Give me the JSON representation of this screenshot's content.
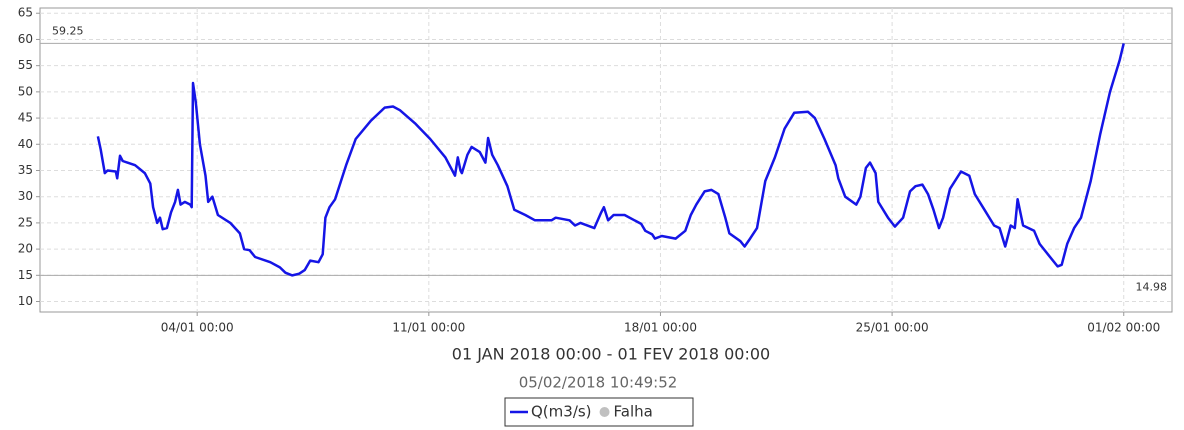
{
  "chart_data": {
    "type": "line",
    "title": "01 JAN 2018 00:00 - 01 FEV 2018 00:00",
    "subtitle": "05/02/2018 10:49:52",
    "x": [
      "01/01 00:00",
      "01/01 02:00",
      "01/01 05:00",
      "01/01 07:00",
      "01/01 13:00",
      "01/01 14:00",
      "01/01 16:00",
      "01/01 18:00",
      "02/01 03:00",
      "02/01 10:00",
      "02/01 14:00",
      "02/01 16:00",
      "02/01 19:00",
      "02/01 21:00",
      "02/01 23:00",
      "03/01 02:00",
      "03/01 05:00",
      "03/01 08:00",
      "03/01 10:00",
      "03/01 12:00",
      "03/01 15:00",
      "03/01 19:00",
      "03/01 20:00",
      "03/01 21:00",
      "03/01 23:00",
      "04/01 02:00",
      "04/01 06:00",
      "04/01 08:00",
      "04/01 11:00",
      "04/01 15:00",
      "05/01 00:00",
      "05/01 07:00",
      "05/01 10:00",
      "05/01 14:00",
      "05/01 18:00",
      "06/01 05:00",
      "06/01 12:00",
      "06/01 16:00",
      "06/01 21:00",
      "07/01 02:00",
      "07/01 06:00",
      "07/01 10:00",
      "07/01 16:00",
      "07/01 19:00",
      "07/01 21:00",
      "08/01 00:00",
      "08/01 04:00",
      "08/01 12:00",
      "08/01 19:00",
      "09/01 06:00",
      "09/01 16:00",
      "09/01 22:00",
      "10/01 03:00",
      "10/01 14:00",
      "11/01 01:00",
      "11/01 12:00",
      "11/01 17:00",
      "11/01 19:00",
      "11/01 21:00",
      "11/01 23:00",
      "12/01 00:00",
      "12/01 04:00",
      "12/01 07:00",
      "12/01 13:00",
      "12/01 17:00",
      "12/01 19:00",
      "12/01 22:00",
      "13/01 02:00",
      "13/01 09:00",
      "13/01 14:00",
      "13/01 22:00",
      "14/01 05:00",
      "14/01 17:00",
      "14/01 20:00",
      "15/01 06:00",
      "15/01 10:00",
      "15/01 14:00",
      "16/01 00:00",
      "16/01 05:00",
      "16/01 07:00",
      "16/01 10:00",
      "16/01 14:00",
      "16/01 22:00",
      "17/01 10:00",
      "17/01 13:00",
      "17/01 18:00",
      "17/01 20:00",
      "18/01 01:00",
      "18/01 11:00",
      "18/01 18:00",
      "18/01 22:00",
      "19/01 02:00",
      "19/01 08:00",
      "19/01 13:00",
      "19/01 18:00",
      "19/01 23:00",
      "20/01 02:00",
      "20/01 10:00",
      "20/01 13:00",
      "20/01 17:00",
      "20/01 22:00",
      "21/01 04:00",
      "21/01 11:00",
      "21/01 18:00",
      "22/01 01:00",
      "22/01 11:00",
      "22/01 16:00",
      "22/01 23:00",
      "23/01 07:00",
      "23/01 09:00",
      "23/01 14:00",
      "23/01 22:00",
      "24/01 01:00",
      "24/01 05:00",
      "24/01 08:00",
      "24/01 12:00",
      "24/01 14:00",
      "24/01 21:00",
      "25/01 02:00",
      "25/01 08:00",
      "25/01 13:00",
      "25/01 17:00",
      "25/01 22:00",
      "26/01 02:00",
      "26/01 06:00",
      "26/01 10:00",
      "26/01 13:00",
      "26/01 18:00",
      "27/01 02:00",
      "27/01 08:00",
      "27/01 12:00",
      "27/01 19:00",
      "28/01 02:00",
      "28/01 06:00",
      "28/01 10:00",
      "28/01 14:00",
      "28/01 17:00",
      "28/01 19:00",
      "28/01 23:00",
      "29/01 07:00",
      "29/01 11:00",
      "29/01 17:00",
      "30/01 00:00",
      "30/01 03:00",
      "30/01 07:00",
      "30/01 12:00",
      "30/01 17:00",
      "31/01 00:00",
      "31/01 07:00",
      "31/01 14:00",
      "31/01 21:00",
      "01/02 00:00"
    ],
    "series": [
      {
        "name": "Q(m3/s)",
        "color": "#1515e6",
        "values": [
          41.5,
          39,
          34.5,
          35,
          34.8,
          33.5,
          37.8,
          36.8,
          36,
          34.5,
          32.5,
          28,
          25,
          26,
          23.8,
          24,
          27,
          29,
          31.3,
          28.5,
          29,
          28.5,
          28,
          51.7,
          48,
          40,
          34,
          29,
          30,
          26.5,
          25,
          23,
          20,
          19.8,
          18.5,
          17.5,
          16.5,
          15.5,
          14.98,
          15.3,
          16,
          17.8,
          17.5,
          19,
          26,
          28,
          29.5,
          36,
          41,
          44.5,
          47,
          47.2,
          46.5,
          44,
          41,
          37.5,
          35,
          34,
          37.5,
          35,
          34.5,
          38,
          39.5,
          38.5,
          36.5,
          41.2,
          38,
          36,
          32,
          27.5,
          26.5,
          25.5,
          25.5,
          26,
          25.5,
          24.5,
          25,
          24,
          27,
          28,
          25.5,
          26.5,
          26.5,
          24.8,
          23.5,
          22.8,
          22,
          22.5,
          22,
          23.5,
          26.5,
          28.5,
          31,
          31.3,
          30.5,
          26,
          23,
          21.5,
          20.5,
          22,
          24,
          33,
          37.5,
          43,
          46,
          46.2,
          45,
          41,
          36,
          33.5,
          30,
          28.5,
          30,
          35.5,
          36.5,
          34.5,
          29,
          26,
          24.3,
          26,
          31,
          32,
          32.3,
          30.5,
          27.5,
          24,
          26,
          31.5,
          34.8,
          34,
          30.5,
          27.5,
          24.5,
          24,
          20.5,
          24.5,
          24,
          29.5,
          24.5,
          23.5,
          21,
          19,
          16.7,
          17,
          21,
          24,
          26,
          33,
          42,
          50,
          56,
          59.25
        ]
      }
    ],
    "legend_items": [
      {
        "name": "Falha",
        "color": "#c0c0c0"
      }
    ],
    "reference_lines": [
      59.25,
      14.98
    ],
    "xlim": [
      "30/12 06:00",
      "02/02 11:00"
    ],
    "xticks": [
      "04/01 00:00",
      "11/01 00:00",
      "18/01 00:00",
      "25/01 00:00",
      "01/02 00:00"
    ],
    "ylim": [
      8,
      66
    ],
    "yticks": [
      10,
      15,
      20,
      25,
      30,
      35,
      40,
      45,
      50,
      55,
      60,
      65
    ],
    "grid": true
  }
}
